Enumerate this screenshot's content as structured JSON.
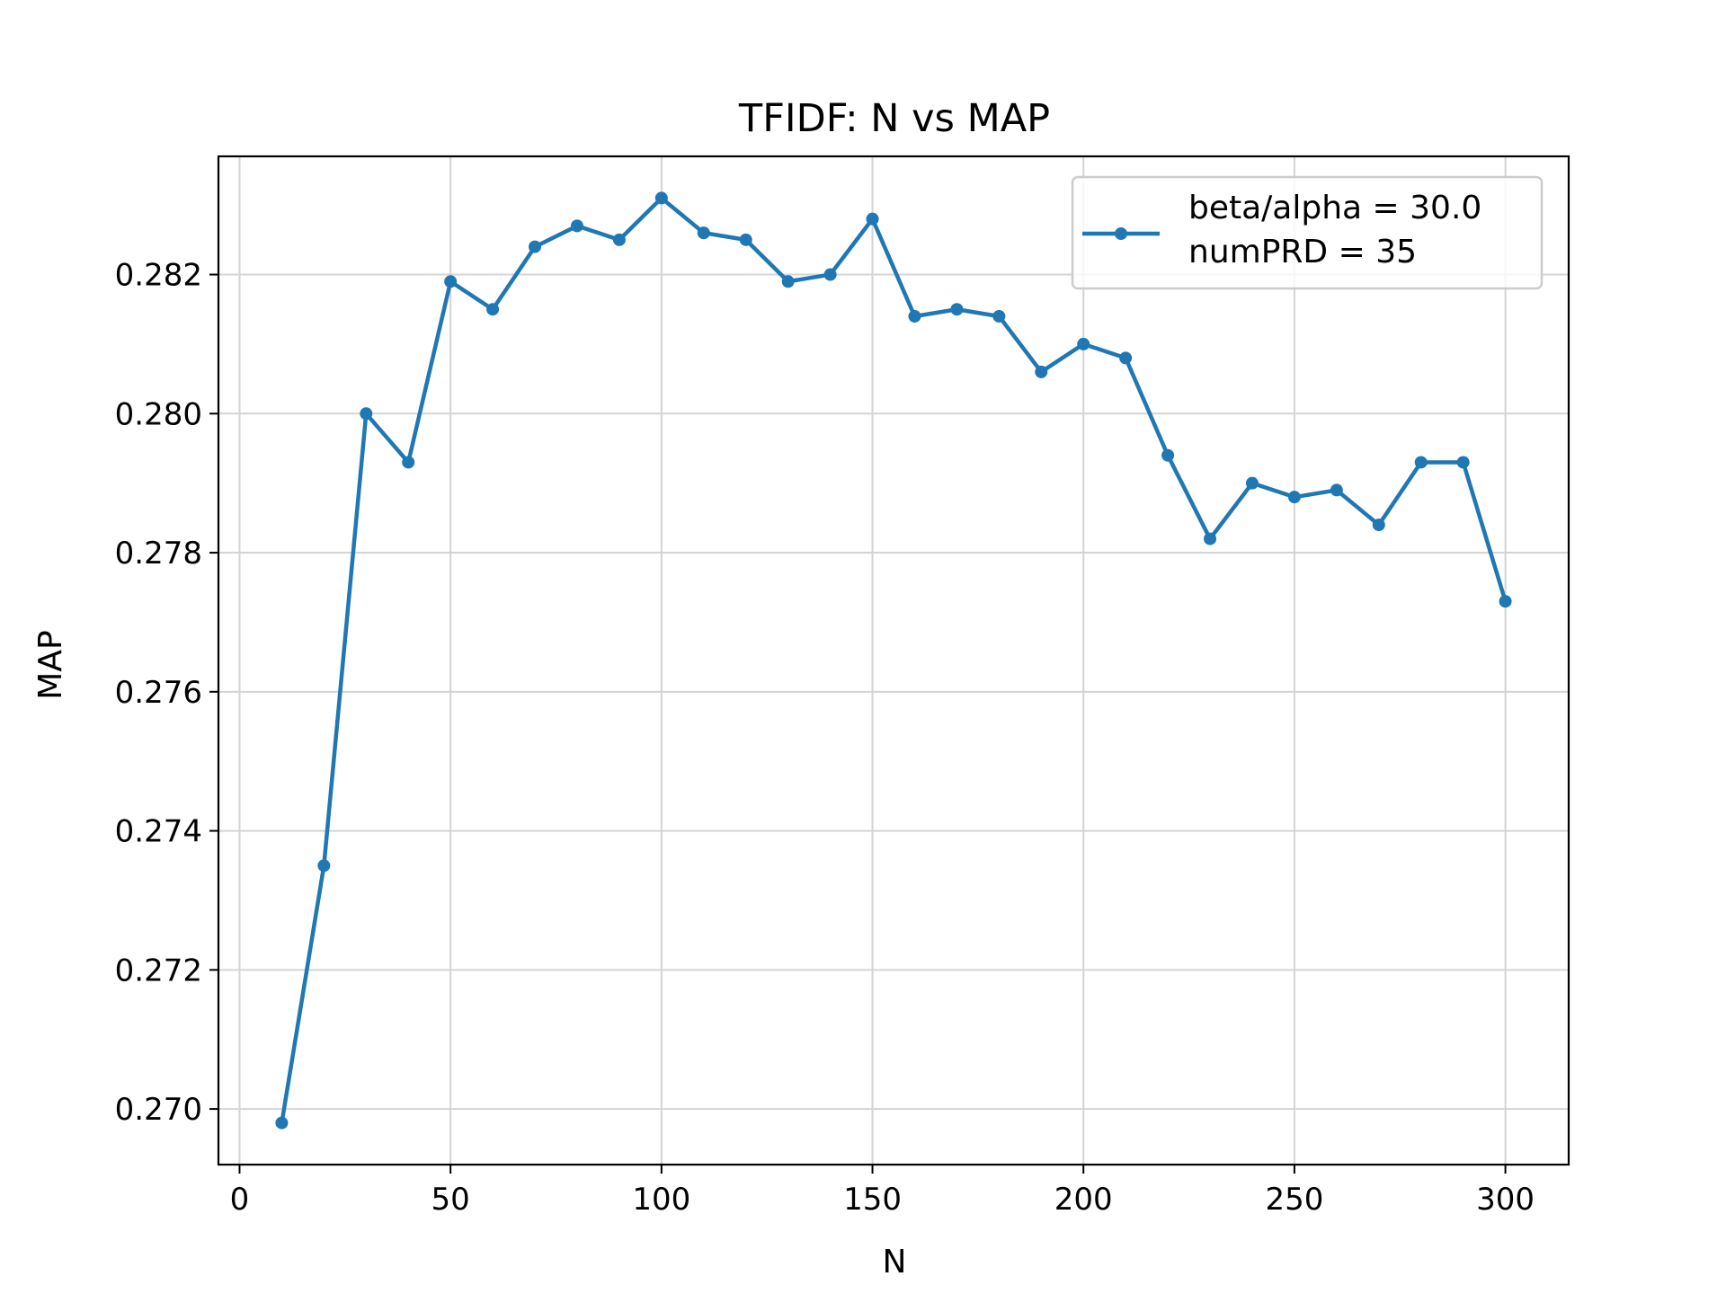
{
  "chart_data": {
    "type": "line",
    "title": "TFIDF: N vs MAP",
    "xlabel": "N",
    "ylabel": "MAP",
    "xlim": [
      -5,
      315
    ],
    "ylim": [
      0.2692,
      0.2837
    ],
    "xticks": [
      0,
      50,
      100,
      150,
      200,
      250,
      300
    ],
    "yticks": [
      0.27,
      0.272,
      0.274,
      0.276,
      0.278,
      0.28,
      0.282
    ],
    "ytick_labels": [
      "0.270",
      "0.272",
      "0.274",
      "0.276",
      "0.278",
      "0.280",
      "0.282"
    ],
    "grid": true,
    "legend_position": "top-right",
    "legend_lines": [
      "beta/alpha = 30.0",
      "numPRD = 35"
    ],
    "series": [
      {
        "color": "#1f77b4",
        "marker": "circle",
        "x": [
          10,
          20,
          30,
          40,
          50,
          60,
          70,
          80,
          90,
          100,
          110,
          120,
          130,
          140,
          150,
          160,
          170,
          180,
          190,
          200,
          210,
          220,
          230,
          240,
          250,
          260,
          270,
          280,
          290,
          300
        ],
        "y": [
          0.2698,
          0.2735,
          0.28,
          0.2793,
          0.2819,
          0.2815,
          0.2824,
          0.2827,
          0.2825,
          0.2831,
          0.2826,
          0.2825,
          0.2819,
          0.282,
          0.2828,
          0.2814,
          0.2815,
          0.2814,
          0.2806,
          0.281,
          0.2808,
          0.2794,
          0.2782,
          0.279,
          0.2788,
          0.2789,
          0.2784,
          0.2793,
          0.2793,
          0.2773
        ]
      }
    ]
  }
}
